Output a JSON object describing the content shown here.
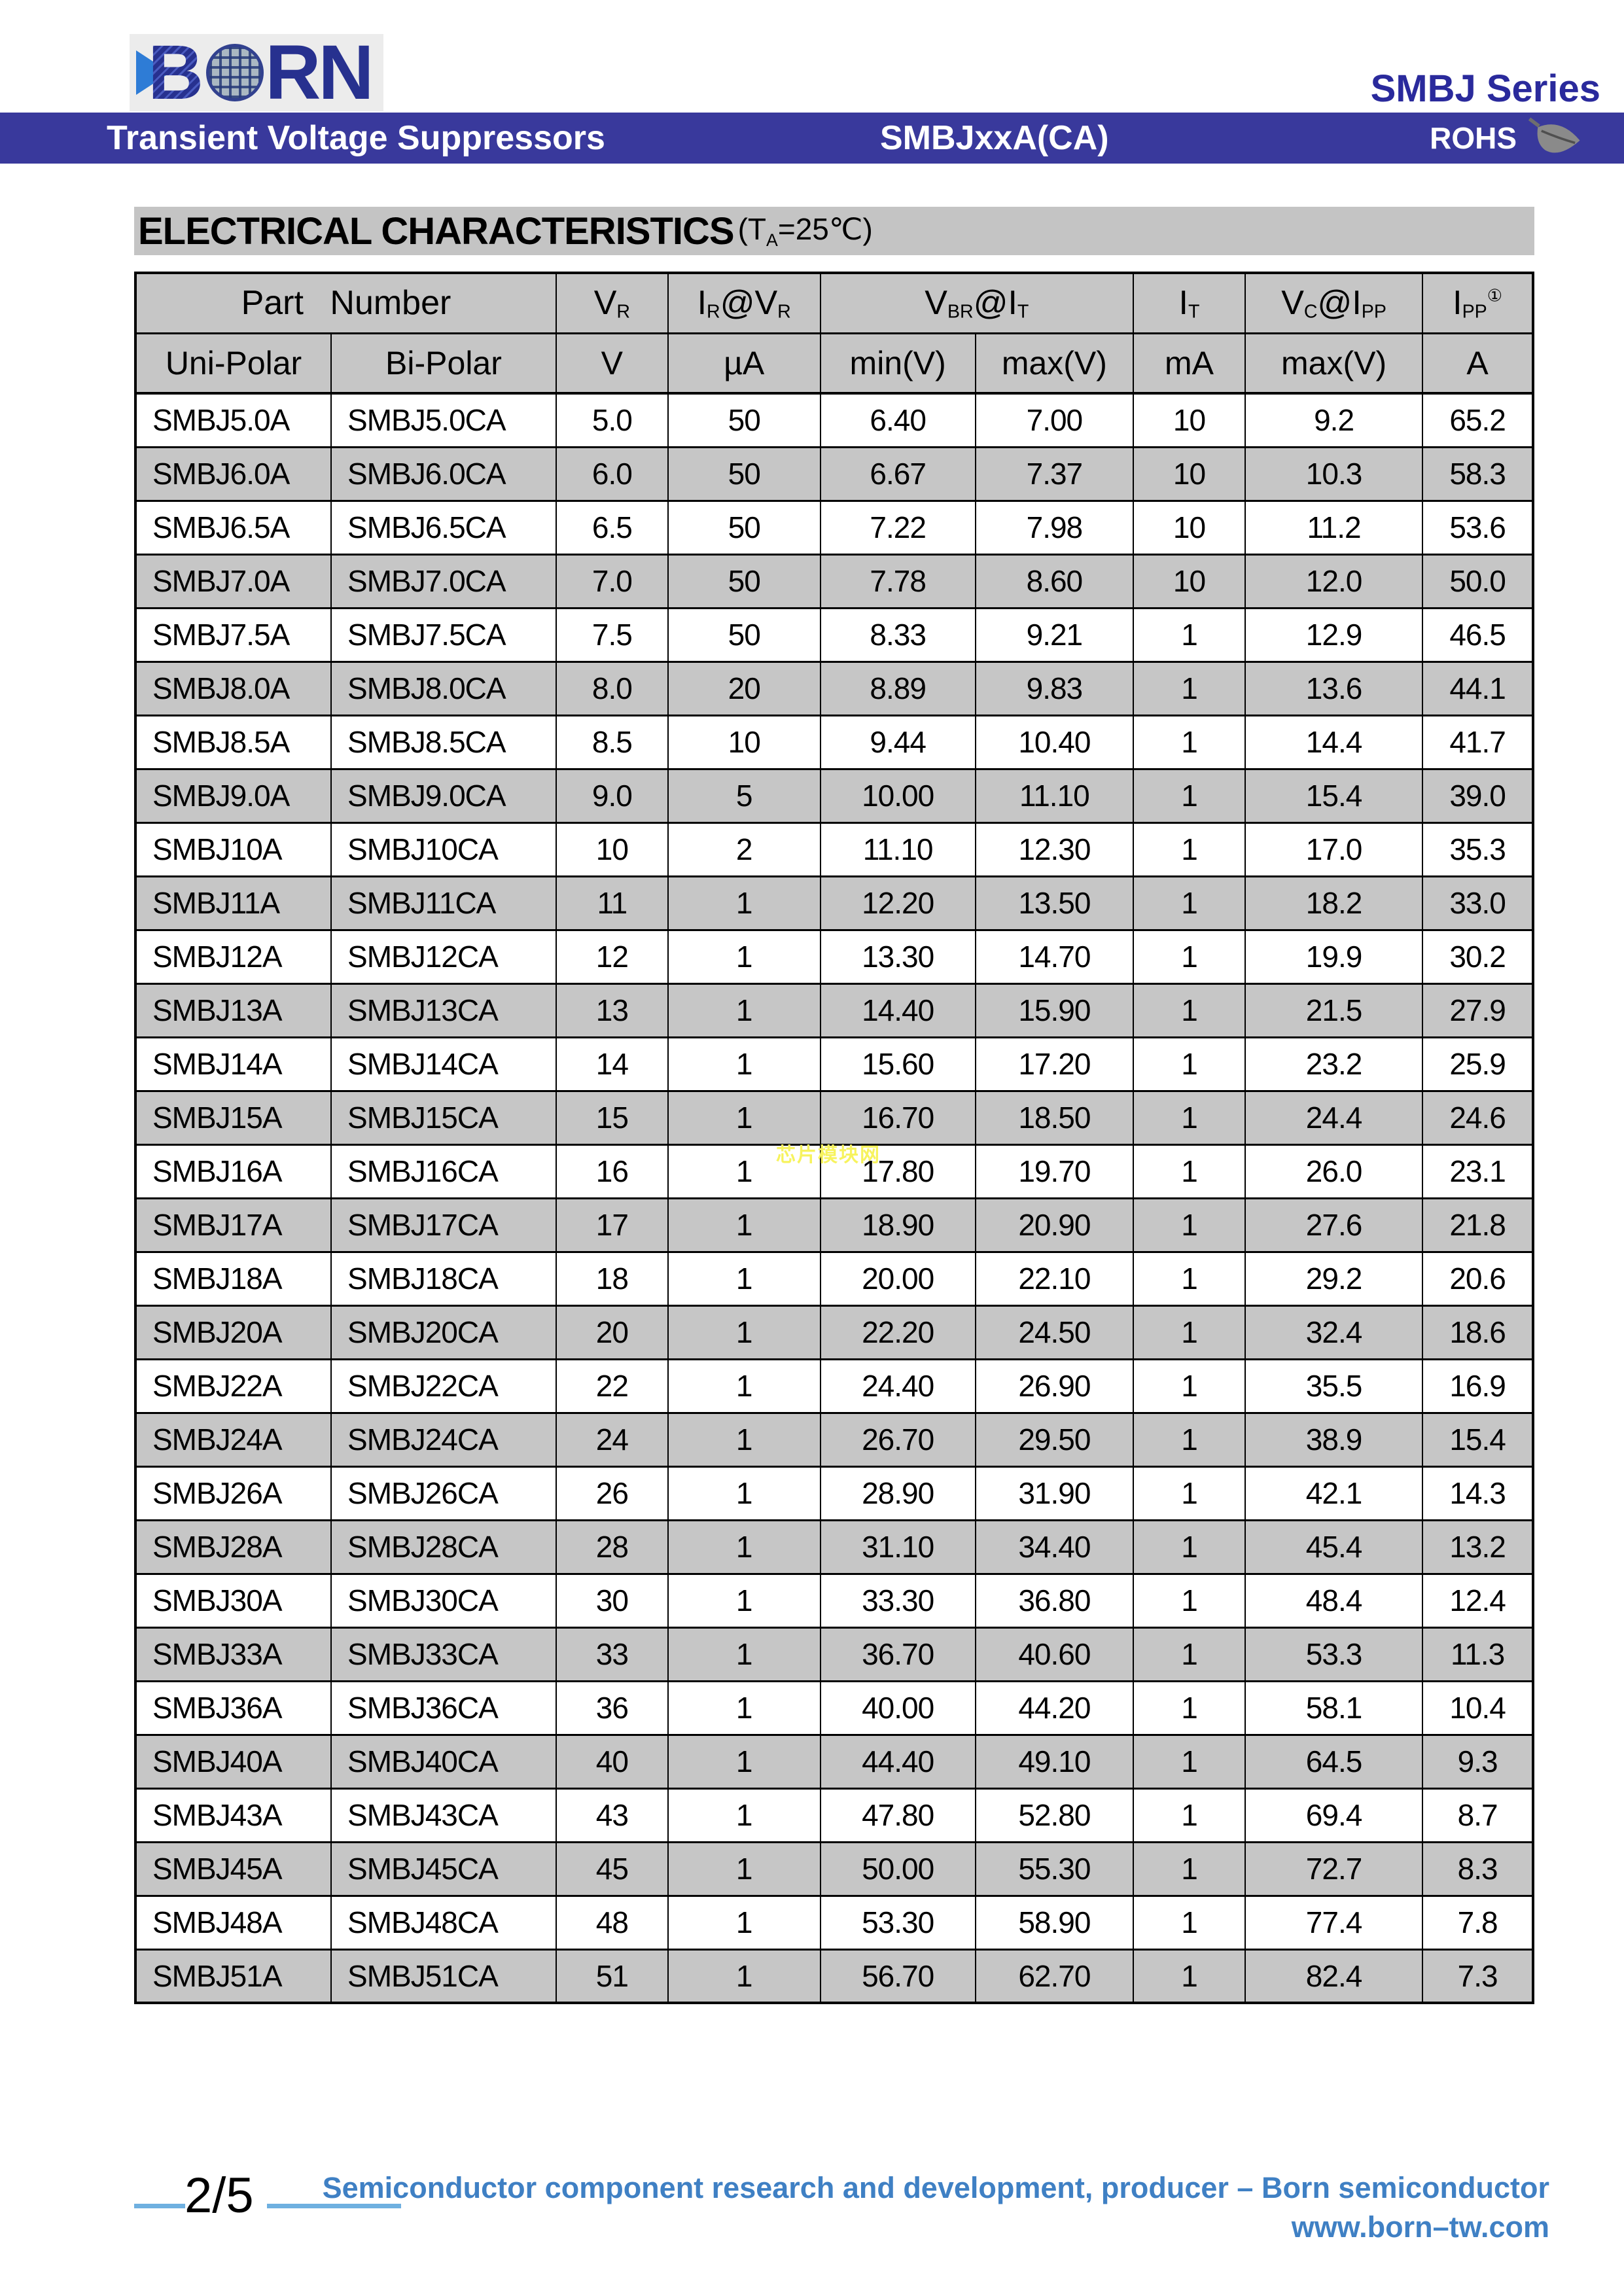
{
  "brand": {
    "logo_b": "B",
    "logo_rn": "RN",
    "series": "SMBJ Series"
  },
  "banner": {
    "product": "Transient Voltage Suppressors",
    "part": "SMBJxxA(CA)",
    "rohs": "ROHS"
  },
  "section": {
    "title": "ELECTRICAL CHARACTERISTICS",
    "condition": "(T~A~=25℃)"
  },
  "table": {
    "header_row1": [
      {
        "label": "Part Number",
        "colspan": 2
      },
      {
        "label": "V~R~"
      },
      {
        "label": "I~R~@V~R~"
      },
      {
        "label": "V~BR~@I~T~",
        "colspan": 2
      },
      {
        "label": "I~T~"
      },
      {
        "label": "V~C~@I~PP~"
      },
      {
        "label": "I~PP~^①^"
      }
    ],
    "header_row2": [
      "Uni-Polar",
      "Bi-Polar",
      "V",
      "µA",
      "min(V)",
      "max(V)",
      "mA",
      "max(V)",
      "A"
    ],
    "rows": [
      [
        "SMBJ5.0A",
        "SMBJ5.0CA",
        "5.0",
        "50",
        "6.40",
        "7.00",
        "10",
        "9.2",
        "65.2"
      ],
      [
        "SMBJ6.0A",
        "SMBJ6.0CA",
        "6.0",
        "50",
        "6.67",
        "7.37",
        "10",
        "10.3",
        "58.3"
      ],
      [
        "SMBJ6.5A",
        "SMBJ6.5CA",
        "6.5",
        "50",
        "7.22",
        "7.98",
        "10",
        "11.2",
        "53.6"
      ],
      [
        "SMBJ7.0A",
        "SMBJ7.0CA",
        "7.0",
        "50",
        "7.78",
        "8.60",
        "10",
        "12.0",
        "50.0"
      ],
      [
        "SMBJ7.5A",
        "SMBJ7.5CA",
        "7.5",
        "50",
        "8.33",
        "9.21",
        "1",
        "12.9",
        "46.5"
      ],
      [
        "SMBJ8.0A",
        "SMBJ8.0CA",
        "8.0",
        "20",
        "8.89",
        "9.83",
        "1",
        "13.6",
        "44.1"
      ],
      [
        "SMBJ8.5A",
        "SMBJ8.5CA",
        "8.5",
        "10",
        "9.44",
        "10.40",
        "1",
        "14.4",
        "41.7"
      ],
      [
        "SMBJ9.0A",
        "SMBJ9.0CA",
        "9.0",
        "5",
        "10.00",
        "11.10",
        "1",
        "15.4",
        "39.0"
      ],
      [
        "SMBJ10A",
        "SMBJ10CA",
        "10",
        "2",
        "11.10",
        "12.30",
        "1",
        "17.0",
        "35.3"
      ],
      [
        "SMBJ11A",
        "SMBJ11CA",
        "11",
        "1",
        "12.20",
        "13.50",
        "1",
        "18.2",
        "33.0"
      ],
      [
        "SMBJ12A",
        "SMBJ12CA",
        "12",
        "1",
        "13.30",
        "14.70",
        "1",
        "19.9",
        "30.2"
      ],
      [
        "SMBJ13A",
        "SMBJ13CA",
        "13",
        "1",
        "14.40",
        "15.90",
        "1",
        "21.5",
        "27.9"
      ],
      [
        "SMBJ14A",
        "SMBJ14CA",
        "14",
        "1",
        "15.60",
        "17.20",
        "1",
        "23.2",
        "25.9"
      ],
      [
        "SMBJ15A",
        "SMBJ15CA",
        "15",
        "1",
        "16.70",
        "18.50",
        "1",
        "24.4",
        "24.6"
      ],
      [
        "SMBJ16A",
        "SMBJ16CA",
        "16",
        "1",
        "17.80",
        "19.70",
        "1",
        "26.0",
        "23.1"
      ],
      [
        "SMBJ17A",
        "SMBJ17CA",
        "17",
        "1",
        "18.90",
        "20.90",
        "1",
        "27.6",
        "21.8"
      ],
      [
        "SMBJ18A",
        "SMBJ18CA",
        "18",
        "1",
        "20.00",
        "22.10",
        "1",
        "29.2",
        "20.6"
      ],
      [
        "SMBJ20A",
        "SMBJ20CA",
        "20",
        "1",
        "22.20",
        "24.50",
        "1",
        "32.4",
        "18.6"
      ],
      [
        "SMBJ22A",
        "SMBJ22CA",
        "22",
        "1",
        "24.40",
        "26.90",
        "1",
        "35.5",
        "16.9"
      ],
      [
        "SMBJ24A",
        "SMBJ24CA",
        "24",
        "1",
        "26.70",
        "29.50",
        "1",
        "38.9",
        "15.4"
      ],
      [
        "SMBJ26A",
        "SMBJ26CA",
        "26",
        "1",
        "28.90",
        "31.90",
        "1",
        "42.1",
        "14.3"
      ],
      [
        "SMBJ28A",
        "SMBJ28CA",
        "28",
        "1",
        "31.10",
        "34.40",
        "1",
        "45.4",
        "13.2"
      ],
      [
        "SMBJ30A",
        "SMBJ30CA",
        "30",
        "1",
        "33.30",
        "36.80",
        "1",
        "48.4",
        "12.4"
      ],
      [
        "SMBJ33A",
        "SMBJ33CA",
        "33",
        "1",
        "36.70",
        "40.60",
        "1",
        "53.3",
        "11.3"
      ],
      [
        "SMBJ36A",
        "SMBJ36CA",
        "36",
        "1",
        "40.00",
        "44.20",
        "1",
        "58.1",
        "10.4"
      ],
      [
        "SMBJ40A",
        "SMBJ40CA",
        "40",
        "1",
        "44.40",
        "49.10",
        "1",
        "64.5",
        "9.3"
      ],
      [
        "SMBJ43A",
        "SMBJ43CA",
        "43",
        "1",
        "47.80",
        "52.80",
        "1",
        "69.4",
        "8.7"
      ],
      [
        "SMBJ45A",
        "SMBJ45CA",
        "45",
        "1",
        "50.00",
        "55.30",
        "1",
        "72.7",
        "8.3"
      ],
      [
        "SMBJ48A",
        "SMBJ48CA",
        "48",
        "1",
        "53.30",
        "58.90",
        "1",
        "77.4",
        "7.8"
      ],
      [
        "SMBJ51A",
        "SMBJ51CA",
        "51",
        "1",
        "56.70",
        "62.70",
        "1",
        "82.4",
        "7.3"
      ]
    ]
  },
  "watermark": "芯片模块网",
  "footer": {
    "page": "2/5",
    "line1": "Semiconductor component research and development, producer – Born semiconductor",
    "line2": "www.born–tw.com"
  },
  "colors": {
    "banner": "#39399c",
    "series": "#2a2a9c",
    "row_stripe": "#c6c6c6",
    "title_bar": "#c4c4c4",
    "footer_blue": "#3f80c4",
    "rule_blue": "#6fb0e0",
    "logo_dark": "#27318f",
    "logo_light": "#2e7cd6",
    "watermark_yellow": "#f7f35e"
  }
}
